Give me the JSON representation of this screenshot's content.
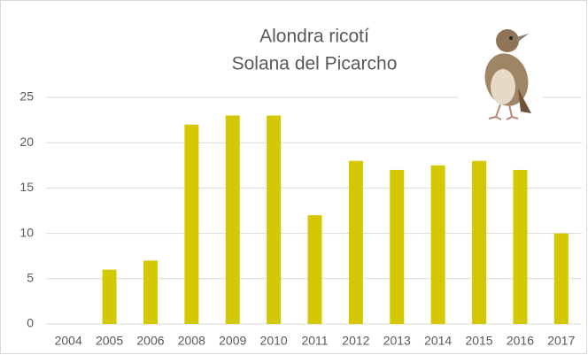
{
  "chart_data": {
    "type": "bar",
    "title": "Alondra ricotí",
    "subtitle": "Solana del Picarcho",
    "categories": [
      "2004",
      "2005",
      "2006",
      "2008",
      "2009",
      "2010",
      "2011",
      "2012",
      "2013",
      "2014",
      "2015",
      "2016",
      "2017"
    ],
    "values": [
      0,
      6,
      7,
      22,
      23,
      23,
      12,
      18,
      17,
      17.5,
      18,
      17,
      10
    ],
    "color": "#d4c802",
    "ylim": [
      0,
      25
    ],
    "yticks": [
      0,
      5,
      10,
      15,
      20,
      25
    ],
    "grid": true
  }
}
